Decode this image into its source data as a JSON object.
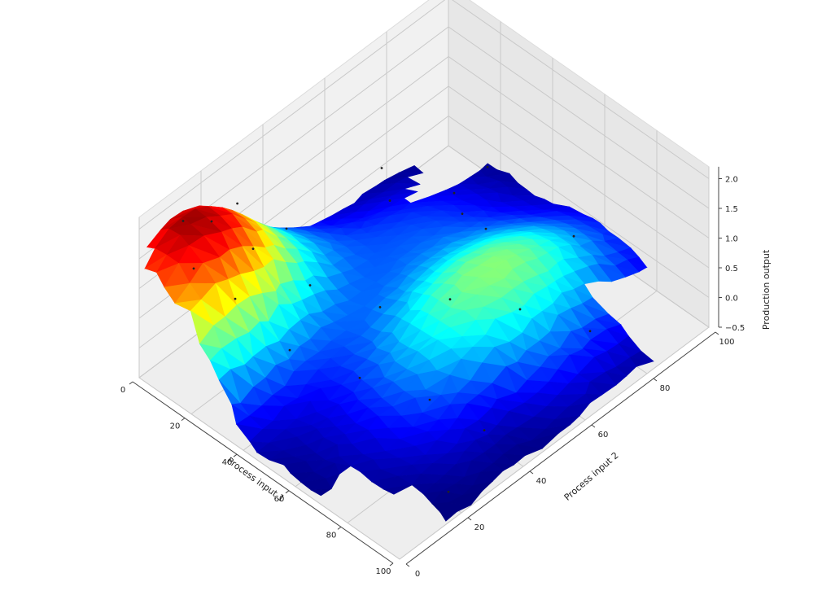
{
  "chart_data": {
    "type": "surface3d",
    "title": "",
    "xlabel": "Process input 1",
    "ylabel": "Process input 2",
    "zlabel": "Production output",
    "xlim": [
      0,
      100
    ],
    "ylim": [
      0,
      100
    ],
    "zlim": [
      -0.5,
      2.0
    ],
    "x_ticks": [
      0,
      20,
      40,
      60,
      80,
      100
    ],
    "y_ticks": [
      0,
      20,
      40,
      60,
      80,
      100
    ],
    "z_ticks": [
      "−0.5",
      "0.0",
      "0.5",
      "1.0",
      "1.5",
      "2.0"
    ],
    "z_tick_values": [
      -0.5,
      0.0,
      0.5,
      1.0,
      1.5,
      2.0
    ],
    "colormap": "jet",
    "grid": true,
    "points": [
      {
        "x": 5,
        "y": 10,
        "z": 1.9
      },
      {
        "x": 10,
        "y": 15,
        "z": 1.85
      },
      {
        "x": 8,
        "y": 25,
        "z": 1.7
      },
      {
        "x": 15,
        "y": 5,
        "z": 1.6
      },
      {
        "x": 20,
        "y": 20,
        "z": 1.5
      },
      {
        "x": 25,
        "y": 10,
        "z": 1.2
      },
      {
        "x": 15,
        "y": 35,
        "z": 1.1
      },
      {
        "x": 30,
        "y": 30,
        "z": 0.8
      },
      {
        "x": 40,
        "y": 15,
        "z": 0.6
      },
      {
        "x": 45,
        "y": 40,
        "z": 0.5
      },
      {
        "x": 55,
        "y": 25,
        "z": 0.2
      },
      {
        "x": 60,
        "y": 50,
        "z": 0.7
      },
      {
        "x": 70,
        "y": 35,
        "z": -0.1
      },
      {
        "x": 75,
        "y": 60,
        "z": 0.6
      },
      {
        "x": 85,
        "y": 40,
        "z": -0.35
      },
      {
        "x": 90,
        "y": 70,
        "z": 0.3
      },
      {
        "x": 25,
        "y": 60,
        "z": 0.9
      },
      {
        "x": 10,
        "y": 70,
        "z": 0.6
      },
      {
        "x": 20,
        "y": 85,
        "z": -0.1
      },
      {
        "x": 15,
        "y": 100,
        "z": -0.4
      },
      {
        "x": 35,
        "y": 75,
        "z": 0.4
      },
      {
        "x": 50,
        "y": 70,
        "z": 0.8
      },
      {
        "x": 60,
        "y": 90,
        "z": 0.2
      },
      {
        "x": 95,
        "y": 20,
        "z": -0.3
      }
    ]
  }
}
